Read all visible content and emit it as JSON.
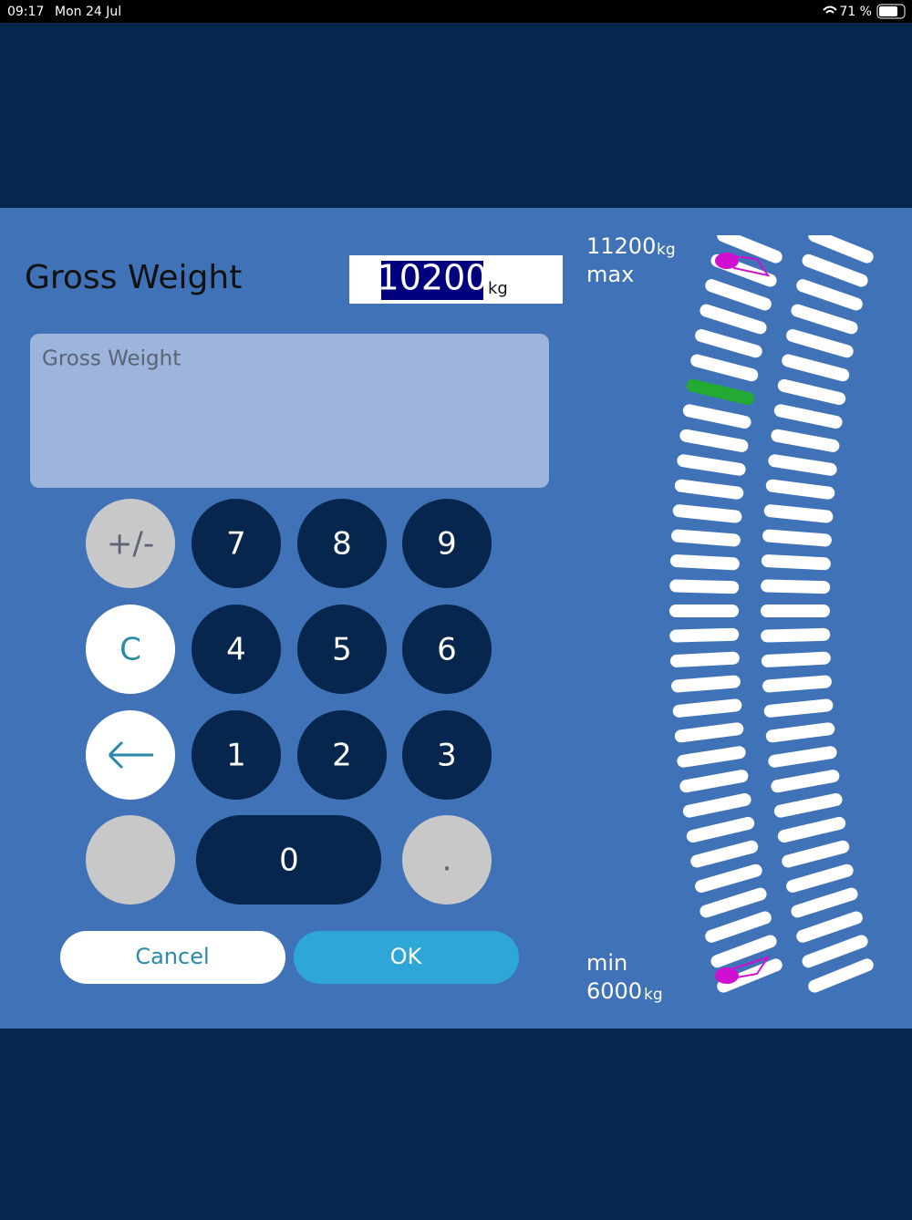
{
  "status_bar": {
    "time": "09:17",
    "date": "Mon 24 Jul",
    "battery": "71 %"
  },
  "dialog": {
    "title": "Gross Weight",
    "value": "10200",
    "unit": "kg",
    "placeholder": "Gross Weight",
    "keys": [
      "+/-",
      "7",
      "8",
      "9",
      "C",
      "4",
      "5",
      "6",
      "1",
      "2",
      "3",
      "0",
      "."
    ],
    "cancel": "Cancel",
    "ok": "OK"
  },
  "gauge": {
    "max_value": "11200",
    "max_unit": "kg",
    "max_label": "max",
    "min_label": "min",
    "min_value": "6000",
    "min_unit": "kg"
  }
}
